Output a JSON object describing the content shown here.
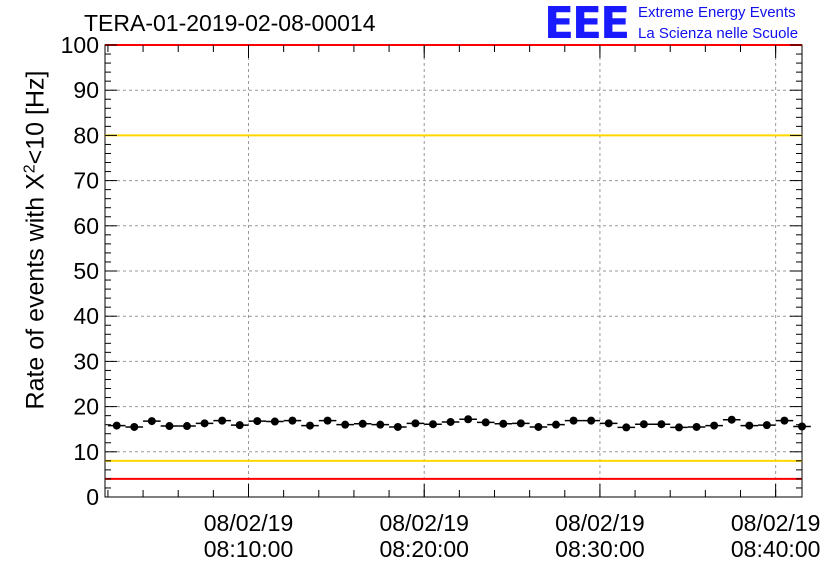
{
  "title": "TERA-01-2019-02-08-00014",
  "logo": {
    "mark": "EEE",
    "line1": "Extreme Energy Events",
    "line2": "La Scienza nelle Scuole"
  },
  "colors": {
    "red_line": "#ff0000",
    "yellow_line": "#ffd700",
    "points": "#000000",
    "logo_blue": "#1a1aff",
    "grid": "#999999"
  },
  "chart_data": {
    "type": "scatter",
    "title": "TERA-01-2019-02-08-00014",
    "ylabel": {
      "text": "Rate of events with ",
      "symbol": "X",
      "sup": "2",
      "tail": "<10 [Hz]"
    },
    "xlabel": "",
    "ylim": [
      0,
      100
    ],
    "yticks": [
      0,
      10,
      20,
      30,
      40,
      50,
      60,
      70,
      80,
      90,
      100
    ],
    "xlim": [
      "08:01:50",
      "08:41:30"
    ],
    "xticks": [
      {
        "time": "08:10:00",
        "date": "08/02/19"
      },
      {
        "time": "08:20:00",
        "date": "08/02/19"
      },
      {
        "time": "08:30:00",
        "date": "08/02/19"
      },
      {
        "time": "08:40:00",
        "date": "08/02/19"
      }
    ],
    "grid": true,
    "reference_lines": [
      {
        "y": 4,
        "color": "red"
      },
      {
        "y": 8,
        "color": "yellow"
      },
      {
        "y": 80,
        "color": "yellow"
      },
      {
        "y": 100,
        "color": "red"
      }
    ],
    "series": [
      {
        "x": [
          "08:02:30",
          "08:03:30",
          "08:04:30",
          "08:05:30",
          "08:06:30",
          "08:07:30",
          "08:08:30",
          "08:09:30",
          "08:10:30",
          "08:11:30",
          "08:12:30",
          "08:13:30",
          "08:14:30",
          "08:15:30",
          "08:16:30",
          "08:17:30",
          "08:18:30",
          "08:19:30",
          "08:20:30",
          "08:21:30",
          "08:22:30",
          "08:23:30",
          "08:24:30",
          "08:25:30",
          "08:26:30",
          "08:27:30",
          "08:28:30",
          "08:29:30",
          "08:30:30",
          "08:31:30",
          "08:32:30",
          "08:33:30",
          "08:34:30",
          "08:35:30",
          "08:36:30",
          "08:37:30",
          "08:38:30",
          "08:39:30",
          "08:40:30",
          "08:41:30"
        ],
        "values": [
          15.8,
          15.5,
          16.8,
          15.7,
          15.7,
          16.3,
          16.9,
          15.9,
          16.8,
          16.7,
          16.9,
          15.8,
          16.9,
          16.0,
          16.2,
          16.0,
          15.5,
          16.3,
          16.1,
          16.6,
          17.2,
          16.5,
          16.2,
          16.3,
          15.5,
          16.0,
          16.9,
          16.9,
          16.3,
          15.4,
          16.1,
          16.1,
          15.4,
          15.5,
          15.8,
          17.1,
          15.8,
          15.9,
          16.9,
          15.6
        ]
      }
    ]
  }
}
